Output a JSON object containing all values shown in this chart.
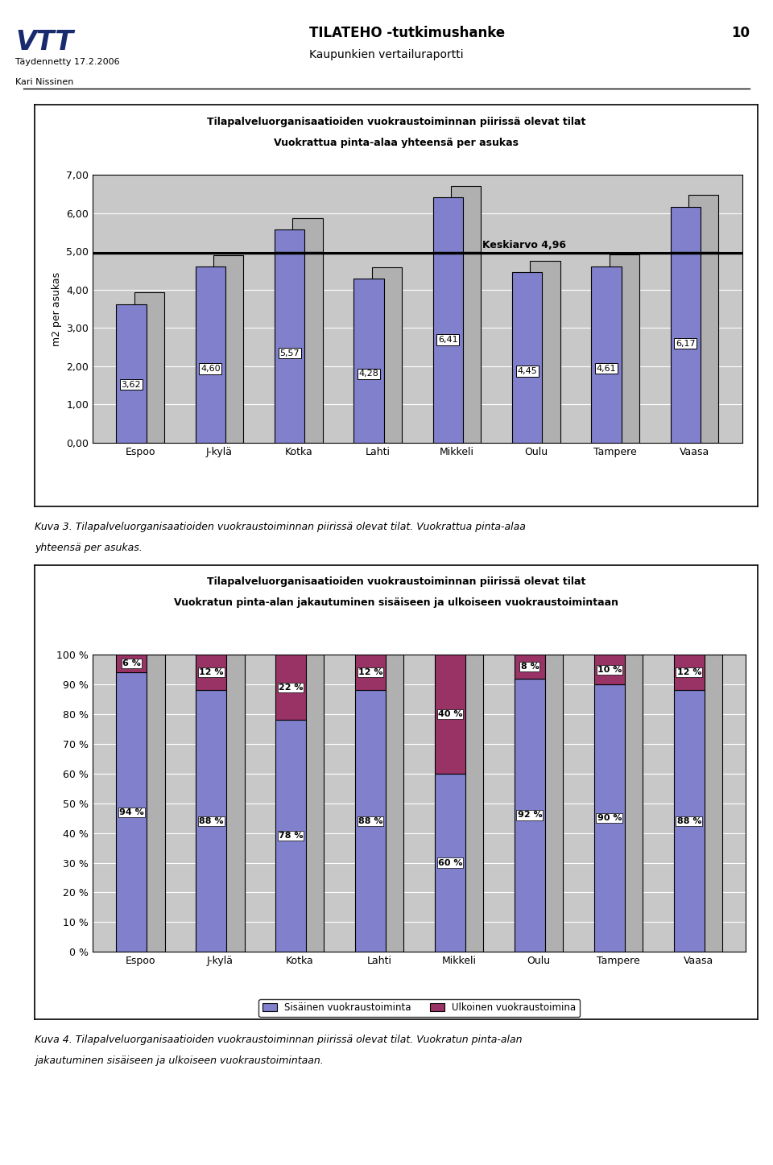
{
  "header_title": "TILATEHO -tutkimushanke",
  "header_subtitle": "Kaupunkien vertailuraportti",
  "header_page": "10",
  "header_date": "Täydennetty 17.2.2006",
  "header_author": "Kari Nissinen",
  "chart1_title1": "Tilapalveluorganisaatioiden vuokraustoiminnan piirissä olevat tilat",
  "chart1_title2": "Vuokrattua pinta-alaa yhteensä per asukas",
  "chart1_ylabel": "m2 per asukas",
  "chart1_categories": [
    "Espoo",
    "J-kylä",
    "Kotka",
    "Lahti",
    "Mikkeli",
    "Oulu",
    "Tampere",
    "Vaasa"
  ],
  "chart1_values": [
    3.62,
    4.6,
    5.57,
    4.28,
    6.41,
    4.45,
    4.61,
    6.17
  ],
  "chart1_back_extra": [
    0.3,
    0.3,
    0.3,
    0.3,
    0.3,
    0.3,
    0.3,
    0.3
  ],
  "chart1_ylim": [
    0,
    7.0
  ],
  "chart1_yticks": [
    0.0,
    1.0,
    2.0,
    3.0,
    4.0,
    5.0,
    6.0,
    7.0
  ],
  "chart1_ytick_labels": [
    "0,00",
    "1,00",
    "2,00",
    "3,00",
    "4,00",
    "5,00",
    "6,00",
    "7,00"
  ],
  "chart1_mean": 4.96,
  "chart1_mean_label": "Keskiarvo 4,96",
  "chart1_bar_color_front": "#8080cc",
  "chart1_bar_color_back": "#b0b0b0",
  "chart1_bar_labels": [
    "3,62",
    "4,60",
    "5,57",
    "4,28",
    "6,41",
    "4,45",
    "4,61",
    "6,17"
  ],
  "caption1_line1": "Kuva 3. Tilapalveluorganisaatioiden vuokraustoiminnan piirissä olevat tilat. Vuokrattua pinta-alaa",
  "caption1_line2": "yhteensä per asukas.",
  "chart2_title1": "Tilapalveluorganisaatioiden vuokraustoiminnan piirissä olevat tilat",
  "chart2_title2": "Vuokratun pinta-alan jakautuminen sisäiseen ja ulkoiseen vuokraustoimintaan",
  "chart2_categories": [
    "Espoo",
    "J-kylä",
    "Kotka",
    "Lahti",
    "Mikkeli",
    "Oulu",
    "Tampere",
    "Vaasa"
  ],
  "chart2_internal": [
    94,
    88,
    78,
    88,
    60,
    92,
    90,
    88
  ],
  "chart2_external": [
    6,
    12,
    22,
    12,
    40,
    8,
    10,
    12
  ],
  "chart2_yticks": [
    0,
    10,
    20,
    30,
    40,
    50,
    60,
    70,
    80,
    90,
    100
  ],
  "chart2_ytick_labels": [
    "0 %",
    "10 %",
    "20 %",
    "30 %",
    "40 %",
    "50 %",
    "60 %",
    "70 %",
    "80 %",
    "90 %",
    "100 %"
  ],
  "chart2_color_internal": "#8080cc",
  "chart2_color_external": "#993366",
  "chart2_color_back": "#b0b0b0",
  "chart2_legend_internal": "Sisäinen vuokraustoiminta",
  "chart2_legend_external": "Ulkoinen vuokraustoimina",
  "caption2_line1": "Kuva 4. Tilapalveluorganisaatioiden vuokraustoiminnan piirissä olevat tilat. Vuokratun pinta-alan",
  "caption2_line2": "jakautuminen sisäiseen ja ulkoiseen vuokraustoimintaan.",
  "plot_bg_color": "#c8c8c8",
  "bar_edge_color": "#000000"
}
